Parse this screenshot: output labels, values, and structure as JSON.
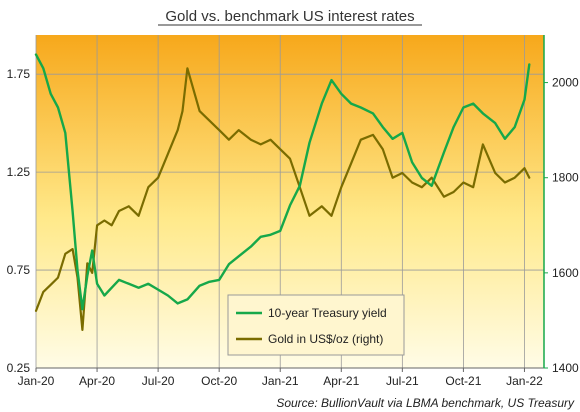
{
  "chart_data": {
    "type": "line",
    "title": "Gold vs. benchmark US interest rates",
    "source": "Source: BullionVault via LBMA benchmark, US Treasury",
    "x_ticks": [
      "Jan-20",
      "Apr-20",
      "Jul-20",
      "Oct-20",
      "Jan-21",
      "Apr-21",
      "Jul-21",
      "Oct-21",
      "Jan-22"
    ],
    "x_range": [
      "2020-01",
      "2022-01"
    ],
    "y_left": {
      "ticks": [
        "0.25",
        "0.75",
        "1.25",
        "1.75"
      ],
      "min": 0.25,
      "max": 1.95
    },
    "y_right": {
      "ticks": [
        "1400",
        "1600",
        "1800",
        "2000"
      ],
      "min": 1400,
      "max": 2100
    },
    "grid": true,
    "legend_position": "bottom-center",
    "colors": {
      "treasury": "#16a84a",
      "gold": "#7a6c00",
      "background_top": "#f7a81b",
      "background_bottom": "#fffce6"
    },
    "series": [
      {
        "name": "10-year Treasury yield",
        "axis": "left",
        "x": [
          2020.0,
          2020.03,
          2020.06,
          2020.09,
          2020.12,
          2020.15,
          2020.17,
          2020.19,
          2020.21,
          2020.23,
          2020.25,
          2020.28,
          2020.31,
          2020.34,
          2020.38,
          2020.42,
          2020.46,
          2020.5,
          2020.54,
          2020.58,
          2020.62,
          2020.67,
          2020.71,
          2020.75,
          2020.79,
          2020.83,
          2020.88,
          2020.92,
          2020.96,
          2021.0,
          2021.04,
          2021.08,
          2021.12,
          2021.17,
          2021.21,
          2021.25,
          2021.29,
          2021.33,
          2021.38,
          2021.42,
          2021.46,
          2021.5,
          2021.54,
          2021.58,
          2021.62,
          2021.67,
          2021.71,
          2021.75,
          2021.79,
          2021.83,
          2021.88,
          2021.92,
          2021.96,
          2022.0,
          2022.02
        ],
        "values": [
          1.85,
          1.78,
          1.65,
          1.58,
          1.45,
          1.05,
          0.75,
          0.55,
          0.72,
          0.85,
          0.68,
          0.62,
          0.66,
          0.7,
          0.68,
          0.66,
          0.68,
          0.65,
          0.62,
          0.58,
          0.6,
          0.67,
          0.69,
          0.7,
          0.78,
          0.82,
          0.87,
          0.92,
          0.93,
          0.95,
          1.08,
          1.18,
          1.4,
          1.6,
          1.72,
          1.65,
          1.6,
          1.58,
          1.55,
          1.48,
          1.42,
          1.45,
          1.3,
          1.22,
          1.18,
          1.35,
          1.48,
          1.58,
          1.6,
          1.55,
          1.5,
          1.42,
          1.48,
          1.62,
          1.8
        ]
      },
      {
        "name": "Gold in US$/oz (right)",
        "axis": "right",
        "x": [
          2020.0,
          2020.03,
          2020.06,
          2020.09,
          2020.12,
          2020.15,
          2020.17,
          2020.19,
          2020.21,
          2020.23,
          2020.25,
          2020.28,
          2020.31,
          2020.34,
          2020.38,
          2020.42,
          2020.46,
          2020.5,
          2020.54,
          2020.58,
          2020.6,
          2020.62,
          2020.67,
          2020.71,
          2020.75,
          2020.79,
          2020.83,
          2020.88,
          2020.92,
          2020.96,
          2021.0,
          2021.04,
          2021.08,
          2021.12,
          2021.17,
          2021.21,
          2021.25,
          2021.29,
          2021.33,
          2021.38,
          2021.42,
          2021.46,
          2021.5,
          2021.54,
          2021.58,
          2021.62,
          2021.67,
          2021.71,
          2021.75,
          2021.79,
          2021.83,
          2021.88,
          2021.92,
          2021.96,
          2022.0,
          2022.02
        ],
        "values": [
          1520,
          1560,
          1575,
          1590,
          1640,
          1650,
          1590,
          1480,
          1620,
          1600,
          1700,
          1710,
          1700,
          1730,
          1740,
          1720,
          1780,
          1800,
          1850,
          1900,
          1940,
          2030,
          1940,
          1920,
          1900,
          1880,
          1900,
          1880,
          1870,
          1880,
          1860,
          1840,
          1780,
          1720,
          1740,
          1720,
          1780,
          1830,
          1880,
          1890,
          1860,
          1800,
          1810,
          1790,
          1780,
          1800,
          1760,
          1770,
          1790,
          1780,
          1870,
          1810,
          1790,
          1800,
          1820,
          1800
        ]
      }
    ]
  }
}
